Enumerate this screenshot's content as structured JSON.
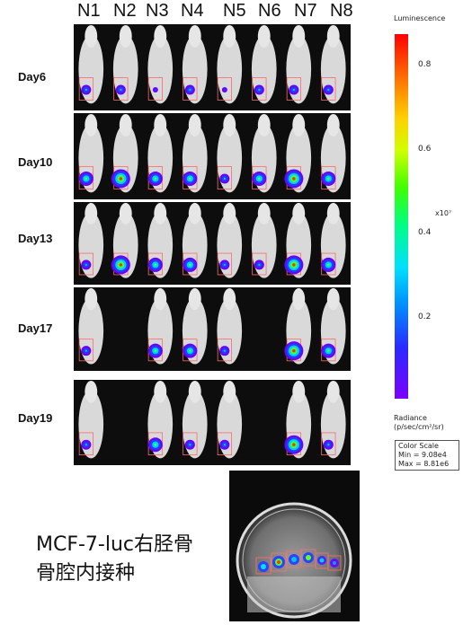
{
  "columns": [
    "N1",
    "N2",
    "N3",
    "N4",
    "N5",
    "N6",
    "N7",
    "N8"
  ],
  "rows": [
    {
      "day": "Day6"
    },
    {
      "day": "Day10"
    },
    {
      "day": "Day13"
    },
    {
      "day": "Day17"
    },
    {
      "day": "Day19"
    }
  ],
  "legend": {
    "title": "Luminescence",
    "ticks": [
      "0.8",
      "0.6",
      "0.4",
      "0.2"
    ],
    "exponent": "x10⁷",
    "radiance_label": "Radiance",
    "radiance_unit": "(p/sec/cm²/sr)",
    "scale_title": "Color Scale",
    "scale_min": "Min = 9.08e4",
    "scale_max": "Max = 8.81e6"
  },
  "caption": {
    "line1": "MCF-7-luc右胫骨",
    "line2": "骨腔内接种"
  }
}
